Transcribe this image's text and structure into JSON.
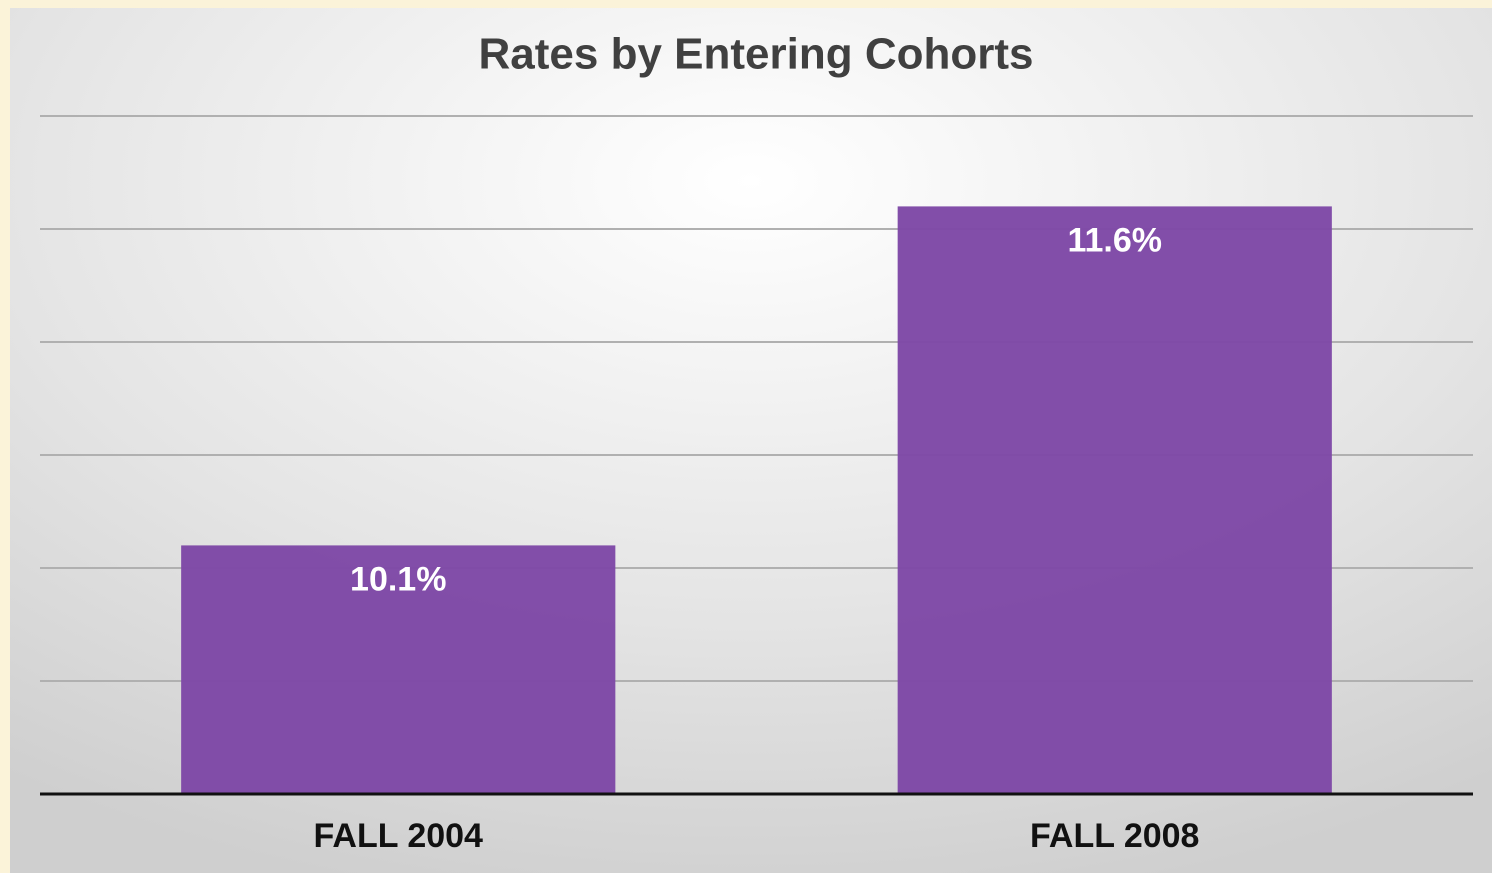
{
  "chart_data": {
    "type": "bar",
    "title": "Rates by Entering Cohorts",
    "categories": [
      "FALL 2004",
      "FALL 2008"
    ],
    "values": [
      10.1,
      11.6
    ],
    "value_labels": [
      "10.1%",
      "11.6%"
    ],
    "color": "#7e48a6",
    "ylim": [
      9,
      12
    ],
    "yticks": [
      9,
      9.5,
      10,
      10.5,
      11,
      11.5,
      12
    ],
    "grid": true
  }
}
